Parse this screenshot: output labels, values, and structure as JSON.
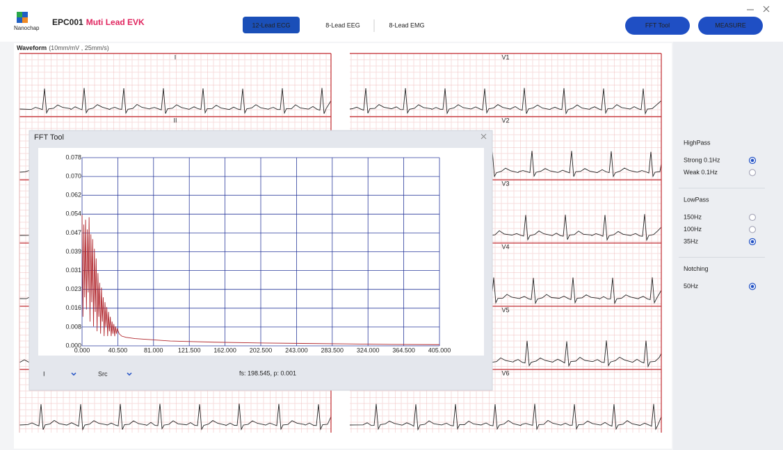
{
  "header": {
    "brand": "Nanochap",
    "model": "EPC001",
    "product": "Muti Lead EVK"
  },
  "tabs": [
    {
      "label": "12-Lead ECG",
      "active": true
    },
    {
      "label": "8-Lead EEG",
      "active": false
    },
    {
      "label": "8-Lead EMG",
      "active": false
    }
  ],
  "buttons": [
    "FFT Tool",
    "MEASURE"
  ],
  "waveform": {
    "title": "Waveform",
    "scale": "(10mm/mV , 25mm/s)"
  },
  "leads": {
    "left": [
      "I",
      "II"
    ],
    "right": [
      "V1",
      "V2",
      "V3",
      "V4",
      "V5",
      "V6"
    ]
  },
  "fft_dialog": {
    "title": "FFT Tool",
    "lead_select": "I",
    "mode_select": "Src",
    "status": "fs: 198.545, p: 0.001"
  },
  "chart_data": {
    "type": "line",
    "x": [
      0,
      1,
      2,
      3,
      4,
      5,
      6,
      7,
      8,
      9,
      10,
      11,
      12,
      13,
      14,
      15,
      16,
      17,
      18,
      19,
      20,
      21,
      22,
      23,
      24,
      25,
      26,
      27,
      28,
      29,
      30,
      31,
      32,
      33,
      34,
      35,
      36,
      37,
      38,
      39,
      40,
      42,
      45,
      50,
      60,
      80,
      100,
      150,
      200,
      250,
      300,
      350,
      405
    ],
    "values": [
      0.054,
      0.012,
      0.05,
      0.02,
      0.052,
      0.015,
      0.048,
      0.022,
      0.053,
      0.01,
      0.046,
      0.018,
      0.044,
      0.008,
      0.04,
      0.014,
      0.036,
      0.006,
      0.03,
      0.012,
      0.026,
      0.005,
      0.024,
      0.01,
      0.02,
      0.004,
      0.018,
      0.008,
      0.016,
      0.004,
      0.014,
      0.006,
      0.012,
      0.004,
      0.01,
      0.005,
      0.009,
      0.004,
      0.008,
      0.005,
      0.007,
      0.005,
      0.004,
      0.0035,
      0.003,
      0.0025,
      0.002,
      0.0015,
      0.0012,
      0.001,
      0.0008,
      0.0006,
      0.0005
    ],
    "color": "#b0252b",
    "xlim": [
      0,
      405
    ],
    "ylim": [
      0,
      0.0776
    ],
    "xticks": [
      {
        "value": 0,
        "label": "0.000"
      },
      {
        "value": 40.5,
        "label": "40.500"
      },
      {
        "value": 81,
        "label": "81.000"
      },
      {
        "value": 121.5,
        "label": "121.500"
      },
      {
        "value": 162,
        "label": "162.000"
      },
      {
        "value": 202.5,
        "label": "202.500"
      },
      {
        "value": 243,
        "label": "243.000"
      },
      {
        "value": 283.5,
        "label": "283.500"
      },
      {
        "value": 324,
        "label": "324.000"
      },
      {
        "value": 364.5,
        "label": "364.500"
      },
      {
        "value": 405,
        "label": "405.000"
      }
    ],
    "yticks": [
      {
        "value": 0,
        "label": "0.000"
      },
      {
        "value": 0.00776,
        "label": "0.008"
      },
      {
        "value": 0.01552,
        "label": "0.016"
      },
      {
        "value": 0.02328,
        "label": "0.023"
      },
      {
        "value": 0.03104,
        "label": "0.031"
      },
      {
        "value": 0.0388,
        "label": "0.039"
      },
      {
        "value": 0.04656,
        "label": "0.047"
      },
      {
        "value": 0.05432,
        "label": "0.054"
      },
      {
        "value": 0.06208,
        "label": "0.062"
      },
      {
        "value": 0.06984,
        "label": "0.070"
      },
      {
        "value": 0.0776,
        "label": "0.078"
      }
    ],
    "grid": true,
    "grid_color": "#2a3a9c"
  },
  "filters": [
    {
      "title": "HighPass",
      "options": [
        {
          "label": "Strong 0.1Hz",
          "checked": true
        },
        {
          "label": "Weak 0.1Hz",
          "checked": false
        }
      ]
    },
    {
      "title": "LowPass",
      "options": [
        {
          "label": "150Hz",
          "checked": false
        },
        {
          "label": "100Hz",
          "checked": false
        },
        {
          "label": "35Hz",
          "checked": true
        }
      ]
    },
    {
      "title": "Notching",
      "options": [
        {
          "label": "50Hz",
          "checked": true
        }
      ]
    }
  ]
}
